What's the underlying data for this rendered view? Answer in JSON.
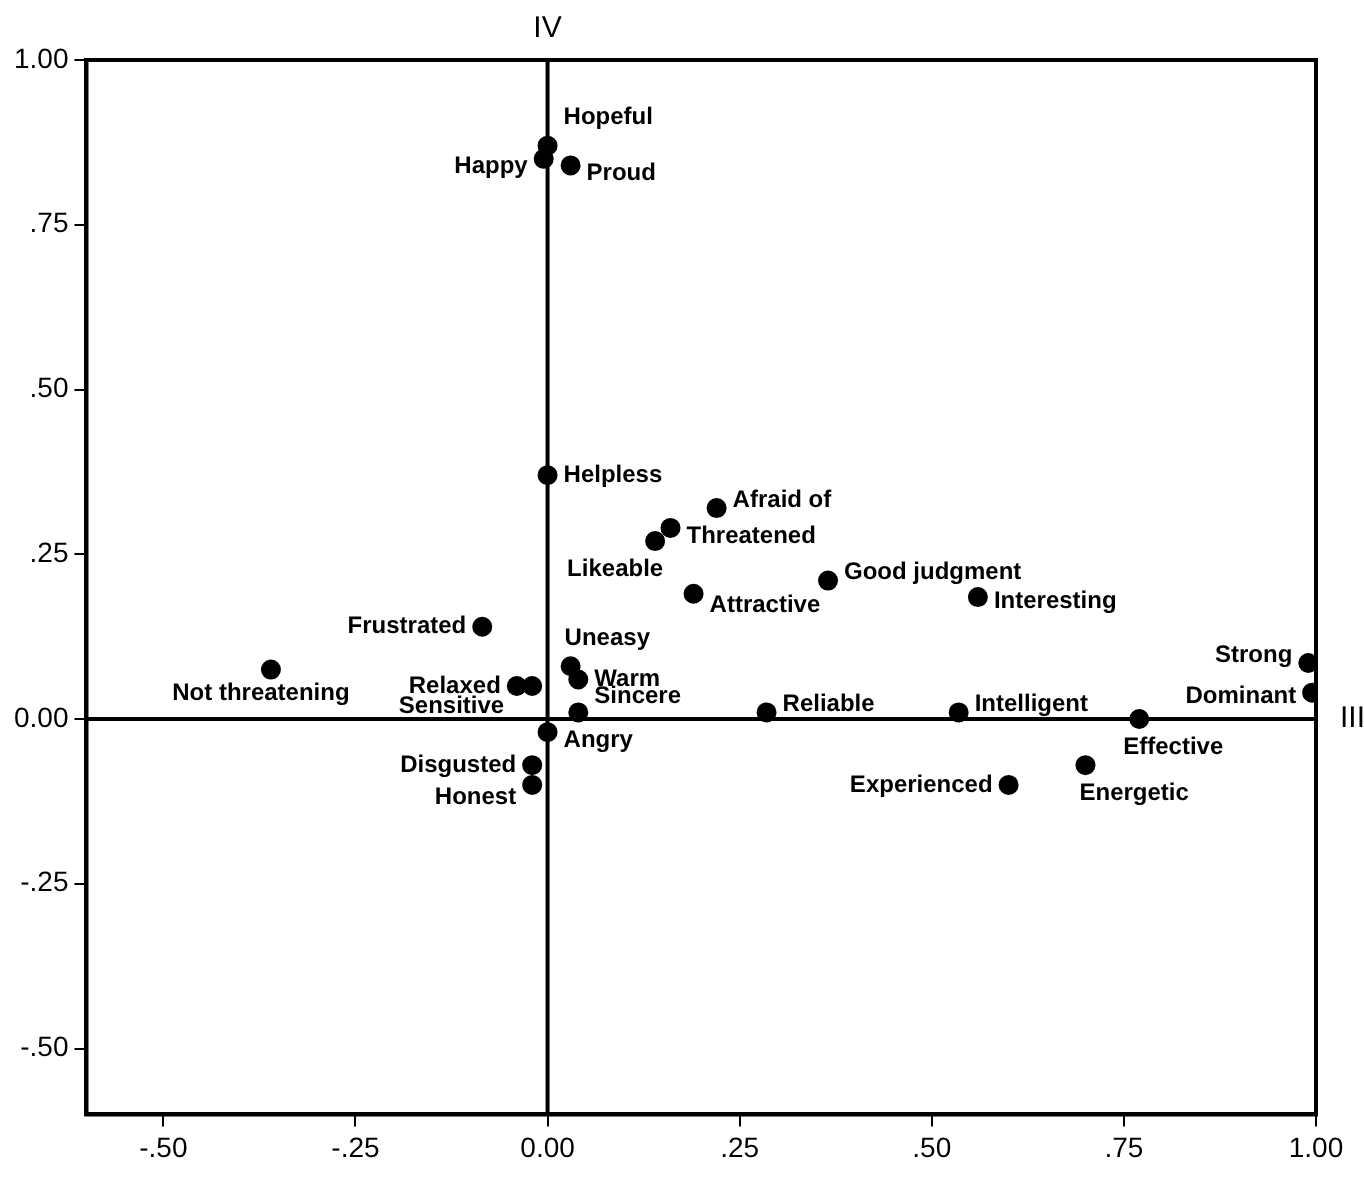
{
  "chart_data": {
    "type": "scatter",
    "series": [
      {
        "color": "#000000",
        "x": [
          0.0,
          -0.005,
          0.03,
          0.0,
          0.22,
          0.16,
          0.14,
          0.19,
          0.365,
          0.56,
          -0.085,
          -0.36,
          0.03,
          0.04,
          -0.04,
          -0.02,
          0.04,
          0.0,
          -0.02,
          -0.02,
          0.285,
          0.535,
          0.77,
          0.99,
          0.995,
          0.6,
          0.7
        ],
        "values": [
          0.87,
          0.85,
          0.84,
          0.37,
          0.32,
          0.29,
          0.27,
          0.19,
          0.21,
          0.185,
          0.14,
          0.075,
          0.08,
          0.06,
          0.05,
          0.05,
          0.01,
          -0.02,
          -0.07,
          -0.1,
          0.01,
          0.01,
          0.0,
          0.085,
          0.04,
          -0.1,
          -0.07
        ]
      }
    ],
    "annotations": [
      {
        "text": "Hopeful",
        "x": 0.0,
        "y": 0.87
      },
      {
        "text": "Happy",
        "x": -0.005,
        "y": 0.85
      },
      {
        "text": "Proud",
        "x": 0.03,
        "y": 0.84
      },
      {
        "text": "Helpless",
        "x": 0.0,
        "y": 0.37
      },
      {
        "text": "Afraid of",
        "x": 0.22,
        "y": 0.32
      },
      {
        "text": "Threatened",
        "x": 0.16,
        "y": 0.29
      },
      {
        "text": "Likeable",
        "x": 0.14,
        "y": 0.27
      },
      {
        "text": "Attractive",
        "x": 0.19,
        "y": 0.19
      },
      {
        "text": "Good judgment",
        "x": 0.365,
        "y": 0.21
      },
      {
        "text": "Interesting",
        "x": 0.56,
        "y": 0.185
      },
      {
        "text": "Frustrated",
        "x": -0.085,
        "y": 0.14
      },
      {
        "text": "Not threatening",
        "x": -0.36,
        "y": 0.075
      },
      {
        "text": "Uneasy",
        "x": 0.03,
        "y": 0.08
      },
      {
        "text": "Warm",
        "x": 0.04,
        "y": 0.06
      },
      {
        "text": "Relaxed",
        "x": -0.04,
        "y": 0.05
      },
      {
        "text": "Sensitive",
        "x": -0.02,
        "y": 0.05
      },
      {
        "text": "Sincere",
        "x": 0.04,
        "y": 0.01
      },
      {
        "text": "Angry",
        "x": 0.0,
        "y": -0.02
      },
      {
        "text": "Disgusted",
        "x": -0.02,
        "y": -0.07
      },
      {
        "text": "Honest",
        "x": -0.02,
        "y": -0.1
      },
      {
        "text": "Reliable",
        "x": 0.285,
        "y": 0.01
      },
      {
        "text": "Intelligent",
        "x": 0.535,
        "y": 0.01
      },
      {
        "text": "Effective",
        "x": 0.77,
        "y": 0.0
      },
      {
        "text": "Strong",
        "x": 0.99,
        "y": 0.085
      },
      {
        "text": "Dominant",
        "x": 0.995,
        "y": 0.04
      },
      {
        "text": "Experienced",
        "x": 0.6,
        "y": -0.1
      },
      {
        "text": "Energetic",
        "x": 0.7,
        "y": -0.07
      }
    ],
    "ref_lines": [
      {
        "axis": "x",
        "value": 0,
        "label": "IV"
      },
      {
        "axis": "y",
        "value": 0,
        "label": "III"
      }
    ],
    "xlim": [
      -0.6,
      1.0
    ],
    "xticks": [
      {
        "value": -0.5,
        "label": "-.50"
      },
      {
        "value": -0.25,
        "label": "-.25"
      },
      {
        "value": 0,
        "label": "0.00"
      },
      {
        "value": 0.25,
        "label": ".25"
      },
      {
        "value": 0.5,
        "label": ".50"
      },
      {
        "value": 0.75,
        "label": ".75"
      },
      {
        "value": 1,
        "label": "1.00"
      }
    ],
    "ylim": [
      -0.6,
      1.0
    ],
    "yticks": [
      {
        "value": -0.5,
        "label": "-.50"
      },
      {
        "value": -0.25,
        "label": "-.25"
      },
      {
        "value": 0,
        "label": "0.00"
      },
      {
        "value": 0.25,
        "label": ".25"
      },
      {
        "value": 0.5,
        "label": ".50"
      },
      {
        "value": 0.75,
        "label": ".75"
      },
      {
        "value": 1,
        "label": "1.00"
      }
    ],
    "marker": "circle",
    "grid": false,
    "legend": false
  }
}
